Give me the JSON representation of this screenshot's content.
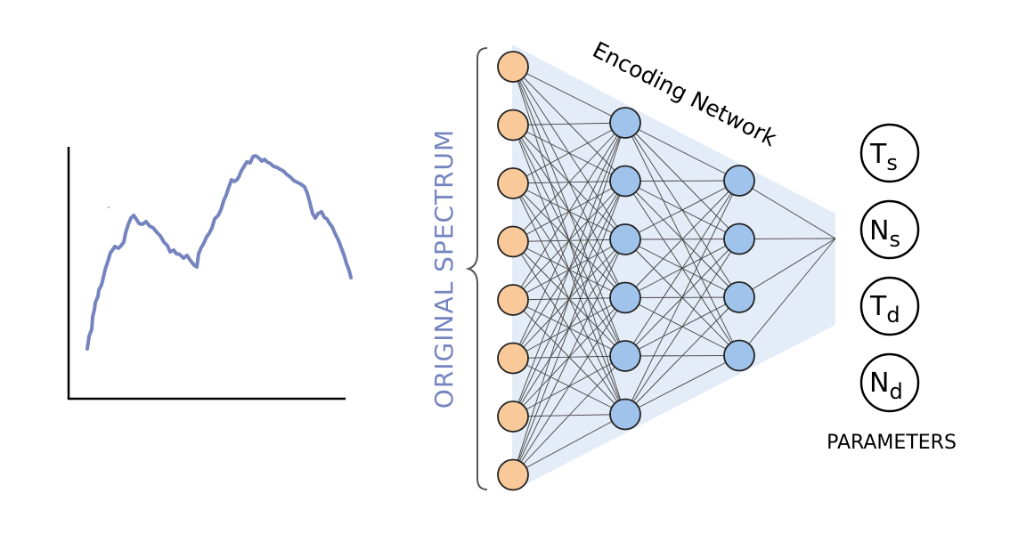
{
  "diagram": {
    "network_title": "Encoding Network",
    "input_label": "ORIGINAL SPECTRUM",
    "output_label": "PARAMETERS",
    "layers": [
      8,
      6,
      4
    ],
    "outputs": [
      {
        "symbol": "T",
        "subscript": "s"
      },
      {
        "symbol": "N",
        "subscript": "s"
      },
      {
        "symbol": "T",
        "subscript": "d"
      },
      {
        "symbol": "N",
        "subscript": "d"
      }
    ],
    "colors": {
      "input_node": "#f9c99a",
      "hidden_node": "#9fc3ea",
      "node_stroke": "#222222",
      "band": "#e4edf7",
      "label_blue": "#7584bf",
      "spectrum_line": "#7584bf",
      "edge": "#444444"
    }
  }
}
